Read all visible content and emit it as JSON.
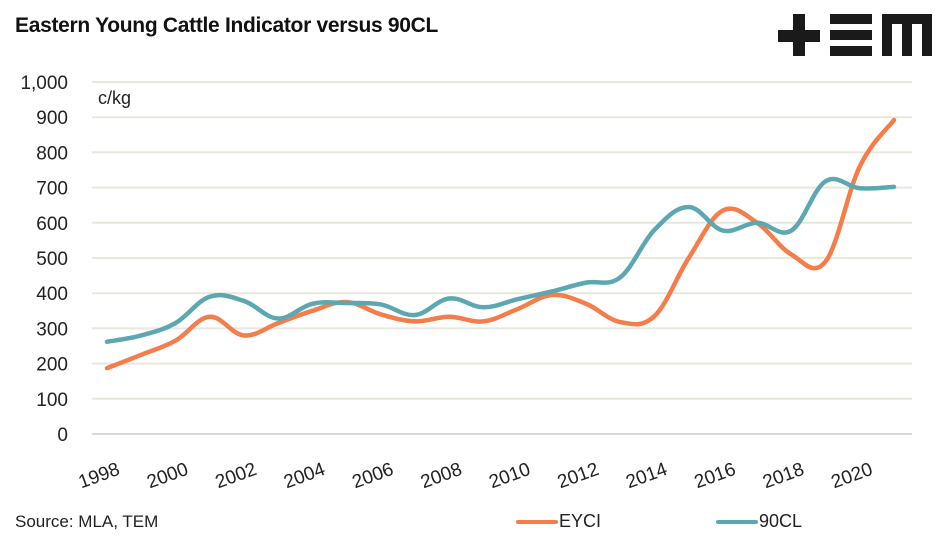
{
  "header": {
    "title": "Eastern Young Cattle Indicator versus 90CL",
    "logo_label": "TEM"
  },
  "footer": {
    "source": "Source: MLA, TEM"
  },
  "colors": {
    "EYCI": "#F47D4A",
    "90CL": "#5DA8B0",
    "grid": "#E8E8DE",
    "axis": "#D9D9D9"
  },
  "chart_data": {
    "type": "line",
    "title": "Eastern Young Cattle Indicator versus 90CL",
    "xlabel": "",
    "ylabel": "c/kg",
    "ylim": [
      0,
      1000
    ],
    "yticks": [
      0,
      100,
      200,
      300,
      400,
      500,
      600,
      700,
      800,
      900,
      1000
    ],
    "ytick_labels": [
      "0",
      "100",
      "200",
      "300",
      "400",
      "500",
      "600",
      "700",
      "800",
      "900",
      "1,000"
    ],
    "x": [
      1998,
      1999,
      2000,
      2001,
      2002,
      2003,
      2004,
      2005,
      2006,
      2007,
      2008,
      2009,
      2010,
      2011,
      2012,
      2013,
      2014,
      2015,
      2016,
      2017,
      2018,
      2019,
      2020,
      2021
    ],
    "xtick_labels": [
      "1998",
      "2000",
      "2002",
      "2004",
      "2006",
      "2008",
      "2010",
      "2012",
      "2014",
      "2016",
      "2018",
      "2020"
    ],
    "grid": true,
    "legend_position": "bottom",
    "smooth": true,
    "series": [
      {
        "name": "EYCI",
        "color": "#F47D4A",
        "values": [
          187,
          225,
          265,
          333,
          280,
          315,
          350,
          375,
          340,
          320,
          333,
          320,
          355,
          395,
          370,
          318,
          335,
          500,
          635,
          600,
          510,
          490,
          760,
          892
        ]
      },
      {
        "name": "90CL",
        "color": "#5DA8B0",
        "values": [
          262,
          280,
          315,
          390,
          378,
          328,
          370,
          372,
          368,
          338,
          385,
          360,
          383,
          405,
          430,
          445,
          580,
          645,
          578,
          600,
          578,
          718,
          698,
          702
        ]
      }
    ]
  }
}
